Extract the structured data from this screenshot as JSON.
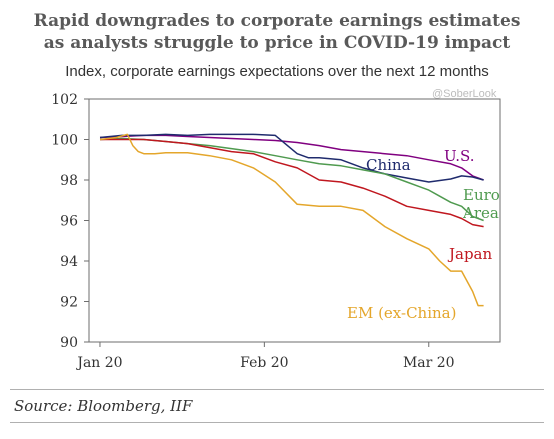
{
  "header": {
    "title_line1": "Rapid downgrades to corporate earnings estimates",
    "title_line2": "as analysts struggle to price in COVID-19 impact",
    "subtitle": "Index, corporate earnings expectations over the next 12 months",
    "watermark": "@SoberLook"
  },
  "footer": {
    "source": "Source: Bloomberg, IIF"
  },
  "chart_data": {
    "type": "line",
    "title": "Rapid downgrades to corporate earnings estimates as analysts struggle to price in COVID-19 impact",
    "subtitle": "Index, corporate earnings expectations over the next 12 months",
    "x_tick_labels": [
      "Jan 20",
      "Feb 20",
      "Mar 20"
    ],
    "x_tick_positions": [
      0,
      30,
      60
    ],
    "xlim": [
      -2,
      73
    ],
    "ylim": [
      90,
      102
    ],
    "y_ticks": [
      90,
      92,
      94,
      96,
      98,
      100,
      102
    ],
    "grid": false,
    "legend": "inline labels",
    "series": [
      {
        "name": "U.S.",
        "color": "#800080",
        "label_lines": [
          "U.S."
        ],
        "x": [
          0,
          4,
          8,
          12,
          16,
          20,
          24,
          28,
          32,
          36,
          40,
          44,
          48,
          52,
          56,
          60,
          64,
          66,
          68,
          70
        ],
        "y": [
          100.1,
          100.15,
          100.2,
          100.2,
          100.15,
          100.1,
          100.05,
          100.0,
          99.95,
          99.85,
          99.7,
          99.5,
          99.4,
          99.3,
          99.2,
          99.0,
          98.8,
          98.6,
          98.2,
          98.0
        ]
      },
      {
        "name": "China",
        "color": "#1f2b6d",
        "label_lines": [
          "China"
        ],
        "x": [
          0,
          4,
          8,
          12,
          16,
          20,
          24,
          28,
          32,
          36,
          38,
          40,
          44,
          48,
          52,
          56,
          60,
          64,
          66,
          68,
          70
        ],
        "y": [
          100.1,
          100.2,
          100.2,
          100.25,
          100.2,
          100.25,
          100.25,
          100.25,
          100.2,
          99.3,
          99.1,
          99.1,
          99.0,
          98.6,
          98.3,
          98.1,
          97.9,
          98.05,
          98.2,
          98.15,
          98.0
        ]
      },
      {
        "name": "Euro Area",
        "color": "#4f9a4f",
        "label_lines": [
          "Euro",
          "Area"
        ],
        "x": [
          0,
          4,
          8,
          12,
          16,
          20,
          24,
          28,
          32,
          36,
          40,
          44,
          48,
          52,
          56,
          58,
          60,
          62,
          64,
          66,
          68,
          70
        ],
        "y": [
          100.0,
          100.05,
          100.0,
          99.9,
          99.8,
          99.7,
          99.55,
          99.4,
          99.2,
          99.0,
          98.8,
          98.7,
          98.5,
          98.3,
          97.9,
          97.7,
          97.5,
          97.2,
          96.9,
          96.7,
          96.2,
          96.0
        ]
      },
      {
        "name": "Japan",
        "color": "#c0171f",
        "label_lines": [
          "Japan"
        ],
        "x": [
          0,
          4,
          8,
          12,
          16,
          20,
          24,
          28,
          32,
          36,
          40,
          44,
          48,
          52,
          56,
          60,
          64,
          66,
          68,
          70
        ],
        "y": [
          100.0,
          100.0,
          100.0,
          99.9,
          99.8,
          99.6,
          99.4,
          99.3,
          98.9,
          98.6,
          98.0,
          97.9,
          97.6,
          97.2,
          96.7,
          96.5,
          96.3,
          96.1,
          95.8,
          95.7
        ]
      },
      {
        "name": "EM (ex-China)",
        "color": "#e4a62b",
        "label_lines": [
          "EM (ex-China)"
        ],
        "x": [
          0,
          3,
          5,
          6,
          7,
          8,
          10,
          12,
          16,
          20,
          24,
          28,
          32,
          36,
          40,
          44,
          48,
          52,
          56,
          60,
          62,
          64,
          66,
          68,
          69,
          70
        ],
        "y": [
          100.0,
          100.1,
          100.25,
          99.7,
          99.4,
          99.3,
          99.3,
          99.35,
          99.35,
          99.2,
          99.0,
          98.6,
          97.9,
          96.8,
          96.7,
          96.7,
          96.5,
          95.7,
          95.1,
          94.6,
          94.0,
          93.5,
          93.5,
          92.5,
          91.8,
          91.8
        ]
      }
    ]
  }
}
